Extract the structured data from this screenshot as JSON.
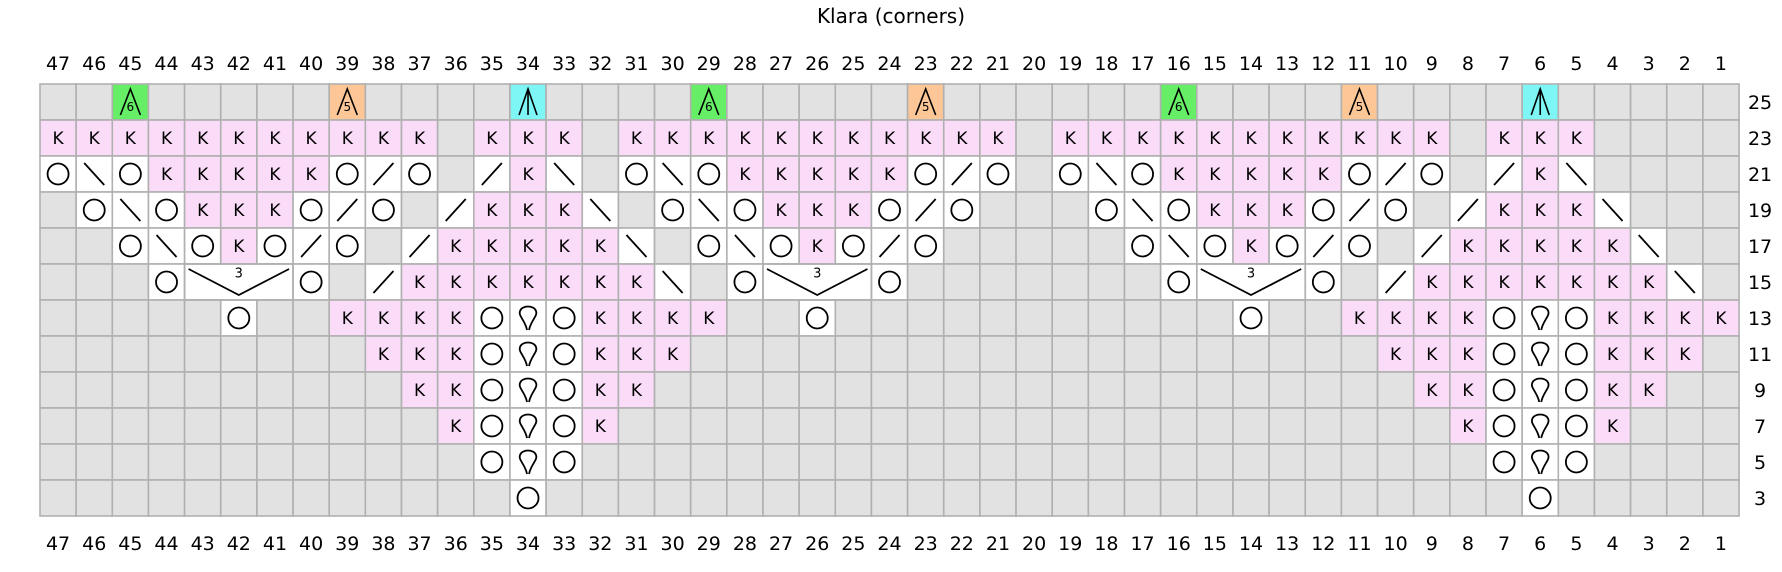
{
  "title": "Klara (corners)",
  "colors": {
    "empty": "#e2e2e2",
    "knit": "#fadcf8",
    "white": "#ffffff",
    "grid": "#b0b0b0",
    "dec6": "#66ee66",
    "dec5": "#fcc696",
    "dec3": "#7ef6f6"
  },
  "chart_data": {
    "type": "table",
    "columns": [
      47,
      46,
      45,
      44,
      43,
      42,
      41,
      40,
      39,
      38,
      37,
      36,
      35,
      34,
      33,
      32,
      31,
      30,
      29,
      28,
      27,
      26,
      25,
      24,
      23,
      22,
      21,
      20,
      19,
      18,
      17,
      16,
      15,
      14,
      13,
      12,
      11,
      10,
      9,
      8,
      7,
      6,
      5,
      4,
      3,
      2,
      1
    ],
    "rows": [
      {
        "label": "25",
        "cells": ".,.,A,.,.,.,.,.,B,.,.,.,.,C,.,.,.,.,A,.,.,.,.,.,B,.,.,.,.,.,.,A,.,.,.,.,B,.,.,.,.,C,.,.,.,.,."
      },
      {
        "label": "23",
        "cells": "K,K,K,K,K,K,K,K,K,K,K,.,K,K,K,.,K,K,K,K,K,K,K,K,K,K,K,.,K,K,K,K,K,K,K,K,K,K,K,.,K,K,K,.,.,.,."
      },
      {
        "label": "21",
        "cells": "O,\\,O,K,K,K,K,K,O,/,O,.,/,K,\\,.,O,\\,O,K,K,K,K,K,O,/,O,.,O,\\,O,K,K,K,K,K,O,/,O,.,/,K,\\,.,.,.,."
      },
      {
        "label": "19",
        "cells": ".,O,\\,O,K,K,K,O,/,O,.,/,K,K,K,\\,.,O,\\,O,K,K,K,O,/,O,.,.,.,O,\\,O,K,K,K,O,/,O,.,/,K,K,K,\\,.,.,."
      },
      {
        "label": "17",
        "cells": ".,.,O,\\,O,K,O,/,O,.,/,K,K,K,K,K,\\,.,O,\\,O,K,O,/,O,.,.,.,.,.,O,\\,O,K,O,/,O,.,/,K,K,K,K,K,\\,.,."
      },
      {
        "label": "15",
        "cells": ".,.,.,O,T,-,-,O,.,/,K,K,K,K,K,K,K,\\,.,O,T,-,-,O,.,.,.,.,.,.,.,O,T,-,-,O,.,/,K,K,K,K,K,K,K,\\,."
      },
      {
        "label": "13",
        "cells": ".,.,.,.,.,O,.,.,K,K,K,K,O,Q,O,K,K,K,K,.,.,O,.,.,.,.,.,.,.,.,.,.,.,O,.,.,K,K,K,K,O,Q,O,K,K,K,K"
      },
      {
        "label": "11",
        "cells": ".,.,.,.,.,.,.,.,.,K,K,K,O,Q,O,K,K,K,.,.,.,.,.,.,.,.,.,.,.,.,.,.,.,.,.,.,.,K,K,K,O,Q,O,K,K,K,."
      },
      {
        "label": "9",
        "cells": ".,.,.,.,.,.,.,.,.,.,K,K,O,Q,O,K,K,.,.,.,.,.,.,.,.,.,.,.,.,.,.,.,.,.,.,.,.,.,K,K,O,Q,O,K,K,.,."
      },
      {
        "label": "7",
        "cells": ".,.,.,.,.,.,.,.,.,.,.,K,O,Q,O,K,.,.,.,.,.,.,.,.,.,.,.,.,.,.,.,.,.,.,.,.,.,.,.,K,O,Q,O,K,.,.,."
      },
      {
        "label": "5",
        "cells": ".,.,.,.,.,.,.,.,.,.,.,.,O,Q,O,.,.,.,.,.,.,.,.,.,.,.,.,.,.,.,.,.,.,.,.,.,.,.,.,.,O,Q,O,.,.,.,."
      },
      {
        "label": "3",
        "cells": ".,.,.,.,.,.,.,.,.,.,.,.,.,O,.,.,.,.,.,.,.,.,.,.,.,.,.,.,.,.,.,.,.,.,.,.,.,.,.,.,.,O,.,.,.,.,."
      }
    ],
    "symbols": {
      "empty": ".",
      "knit": "K",
      "yarn_over": "O",
      "k2tog": "/",
      "ssk": "\\",
      "twisted": "Q",
      "dec6": "A",
      "dec5": "B",
      "dec3": "C",
      "bobble3": "T",
      "bobble3_span": "-"
    },
    "knit_label": "K",
    "dec6_number": "6",
    "dec5_number": "5",
    "bobble3_number": "3"
  }
}
